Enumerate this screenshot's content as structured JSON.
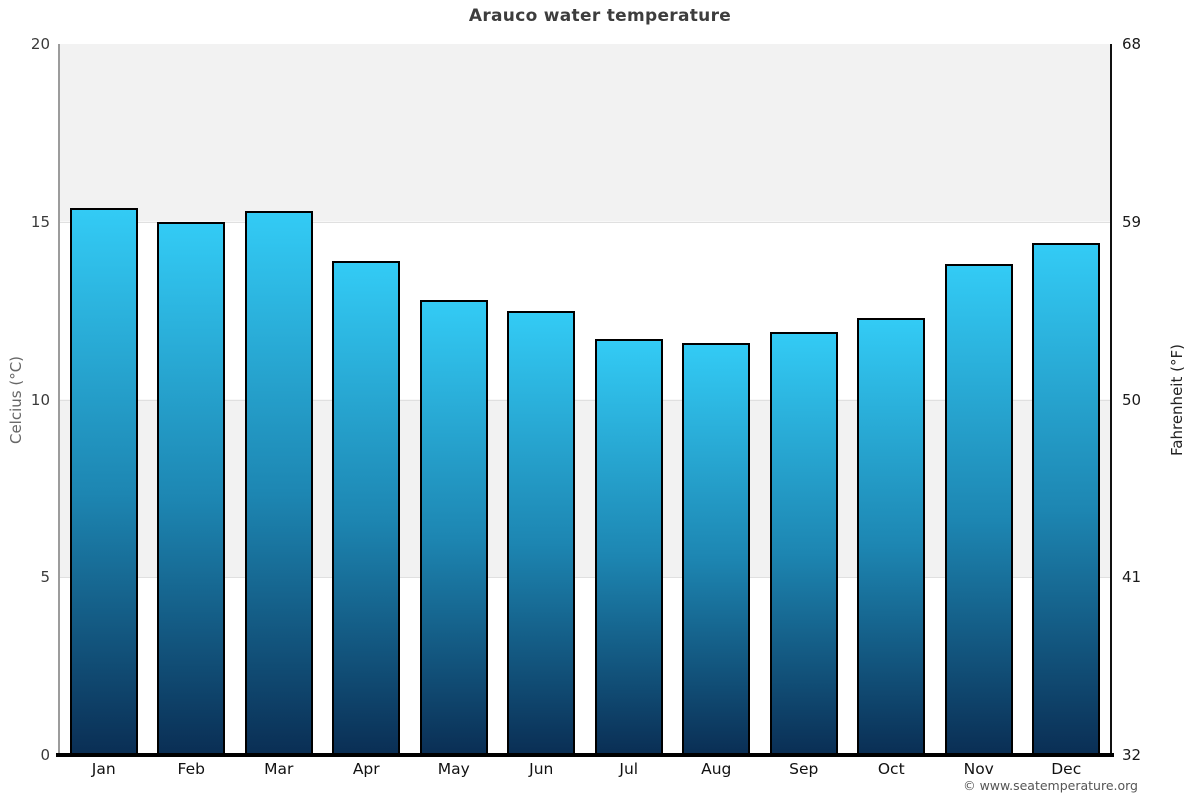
{
  "chart_data": {
    "type": "bar",
    "title": "Arauco water temperature",
    "categories": [
      "Jan",
      "Feb",
      "Mar",
      "Apr",
      "May",
      "Jun",
      "Jul",
      "Aug",
      "Sep",
      "Oct",
      "Nov",
      "Dec"
    ],
    "values": [
      15.4,
      15.0,
      15.3,
      13.9,
      12.8,
      12.5,
      11.7,
      11.6,
      11.9,
      12.3,
      13.8,
      14.4
    ],
    "unit": "°C",
    "ylabel_left": "Celcius (°C)",
    "ylabel_right": "Fahrenheit (°F)",
    "yticks_celsius": [
      20,
      15,
      10,
      5,
      0
    ],
    "yticks_fahrenheit": [
      68,
      59,
      50,
      41,
      32
    ],
    "ylim": [
      0,
      20
    ],
    "grid": "horizontal-bands",
    "legend": "none",
    "colors": {
      "bar_top": "#33cbf5",
      "bar_mid": "#1d86b2",
      "bar_bottom": "#0a2e54",
      "bar_border": "#000000",
      "band_gray": "#f2f2f2",
      "band_white": "#ffffff",
      "gridline": "#e0e0e0",
      "axis_left": "#9c9c9c",
      "axis_right": "#111111",
      "axis_bottom": "#000000",
      "title_color": "#3d3d3d"
    }
  },
  "footer": {
    "credit": "© www.seatemperature.org"
  }
}
